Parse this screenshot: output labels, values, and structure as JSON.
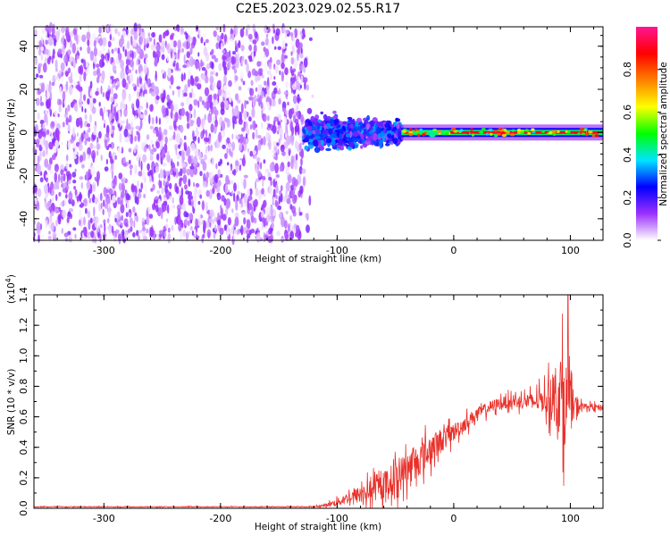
{
  "title": "C2E5.2023.029.02.55.R17",
  "chart_data": [
    {
      "type": "heatmap",
      "xlabel": "Height of straight line (km)",
      "ylabel": "Frequency (Hz)",
      "xlim": [
        -360,
        128
      ],
      "ylim": [
        -50,
        49
      ],
      "xticks": [
        -300,
        -200,
        -100,
        0,
        100
      ],
      "yticks": [
        -40,
        -20,
        0,
        20,
        40
      ],
      "colorbar": {
        "label": "Normalized spectral amplitude",
        "ticks": [
          0.0,
          0.2,
          0.4,
          0.6,
          0.8
        ],
        "tick_labels": [
          "0.0",
          "0.2",
          "0.4",
          "0.6",
          "0.8"
        ],
        "range": [
          0,
          1
        ],
        "colors": [
          "#ffffff",
          "#9b30ff",
          "#0000ff",
          "#00e5ff",
          "#00ff00",
          "#ffff00",
          "#ff8000",
          "#ff0000",
          "#ff1493"
        ]
      },
      "regions": [
        {
          "x": [
            -360,
            -128
          ],
          "freq": [
            -50,
            49
          ],
          "amplitude": [
            0.0,
            0.15
          ],
          "description": "noise"
        },
        {
          "x": [
            -128,
            -45
          ],
          "freq": [
            -12,
            12
          ],
          "amplitude": [
            0.1,
            0.35
          ]
        },
        {
          "x": [
            -45,
            128
          ],
          "freq": [
            -3,
            3
          ],
          "amplitude": [
            0.3,
            0.9
          ],
          "center_freq": 0
        }
      ]
    },
    {
      "type": "line",
      "xlabel": "Height of straight line (km)",
      "ylabel": "SNR (10 * v/v)",
      "yscale_label": "(x10",
      "yscale_exp": "4",
      "yscale_close": ")",
      "xlim": [
        -360,
        128
      ],
      "ylim": [
        0,
        1.4
      ],
      "xticks": [
        -300,
        -200,
        -100,
        0,
        100
      ],
      "yticks": [
        0.0,
        0.2,
        0.4,
        0.6,
        0.8,
        1.0,
        1.2,
        1.4
      ],
      "ytick_labels": [
        "0.0",
        "0.2",
        "0.4",
        "0.6",
        "0.8",
        "1.0",
        "1.2",
        "1.4"
      ],
      "color": "#e8302a",
      "series": [
        {
          "x": [
            -360,
            -300,
            -250,
            -200,
            -150,
            -120,
            -110,
            -100,
            -90,
            -80,
            -70,
            -60,
            -50,
            -40,
            -30,
            -20,
            -10,
            0,
            10,
            20,
            30,
            40,
            50,
            60,
            70,
            80,
            85,
            90,
            95,
            100,
            110,
            128
          ],
          "values": [
            0.01,
            0.01,
            0.01,
            0.01,
            0.01,
            0.01,
            0.02,
            0.04,
            0.07,
            0.09,
            0.12,
            0.15,
            0.2,
            0.26,
            0.32,
            0.38,
            0.45,
            0.5,
            0.56,
            0.62,
            0.66,
            0.69,
            0.7,
            0.7,
            0.7,
            0.72,
            0.73,
            0.75,
            0.72,
            0.66,
            0.67,
            0.66
          ],
          "noise_amplitude": [
            0.005,
            0.005,
            0.005,
            0.005,
            0.005,
            0.005,
            0.02,
            0.05,
            0.08,
            0.12,
            0.15,
            0.18,
            0.22,
            0.22,
            0.22,
            0.2,
            0.16,
            0.12,
            0.1,
            0.08,
            0.08,
            0.08,
            0.08,
            0.1,
            0.12,
            0.2,
            0.35,
            0.5,
            0.6,
            0.3,
            0.04,
            0.04
          ]
        }
      ],
      "peak": {
        "x": 98,
        "value": 1.4
      }
    }
  ]
}
